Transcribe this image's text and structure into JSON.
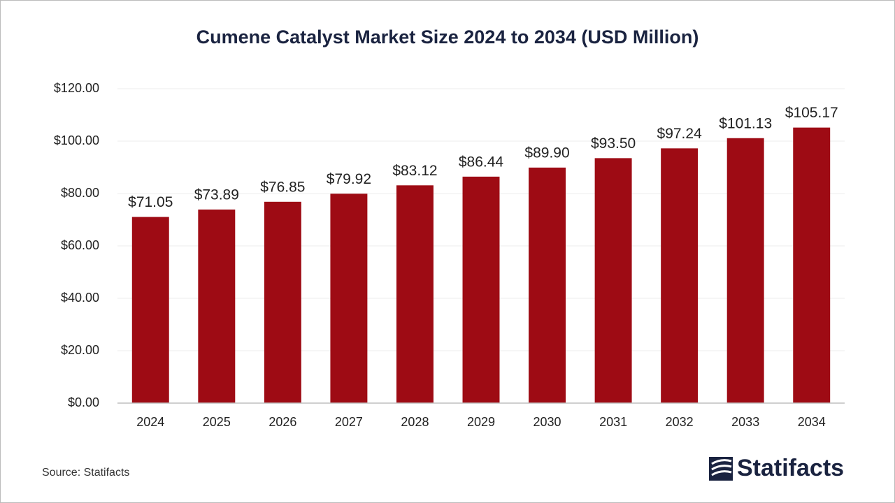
{
  "chart_data": {
    "type": "bar",
    "title": "Cumene Catalyst Market Size 2024 to 2034 (USD Million)",
    "categories": [
      "2024",
      "2025",
      "2026",
      "2027",
      "2028",
      "2029",
      "2030",
      "2031",
      "2032",
      "2033",
      "2034"
    ],
    "values": [
      71.05,
      73.89,
      76.85,
      79.92,
      83.12,
      86.44,
      89.9,
      93.5,
      97.24,
      101.13,
      105.17
    ],
    "value_labels": [
      "$71.05",
      "$73.89",
      "$76.85",
      "$79.92",
      "$83.12",
      "$86.44",
      "$89.90",
      "$93.50",
      "$97.24",
      "$101.13",
      "$105.17"
    ],
    "color": "#9e0b14",
    "ylim": [
      0,
      120
    ],
    "yticks": [
      {
        "value": 0,
        "label": "$0.00"
      },
      {
        "value": 20,
        "label": "$20.00"
      },
      {
        "value": 40,
        "label": "$40.00"
      },
      {
        "value": 60,
        "label": "$60.00"
      },
      {
        "value": 80,
        "label": "$80.00"
      },
      {
        "value": 100,
        "label": "$100.00"
      },
      {
        "value": 120,
        "label": "$120.00"
      }
    ],
    "grid": true
  },
  "source": "Source: Statifacts",
  "logo": "Statifacts"
}
